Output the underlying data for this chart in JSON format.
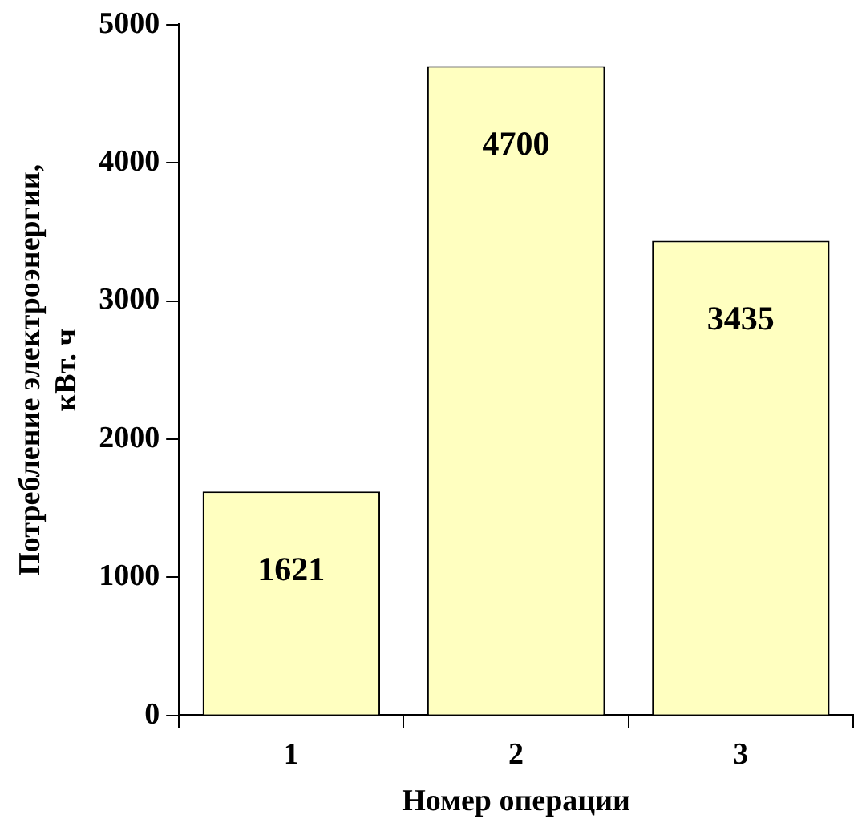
{
  "chart_data": {
    "type": "bar",
    "xlabel": "Номер операции",
    "ylabel": "Потребление электроэнергии,\nкВт. ч",
    "categories": [
      "1",
      "2",
      "3"
    ],
    "values": [
      1621,
      4700,
      3435
    ],
    "color": "#ffffc0",
    "ylim": [
      0,
      5000
    ],
    "yticks": [
      0,
      1000,
      2000,
      3000,
      4000,
      5000
    ],
    "grid": false,
    "legend": false,
    "data_labels": true
  }
}
